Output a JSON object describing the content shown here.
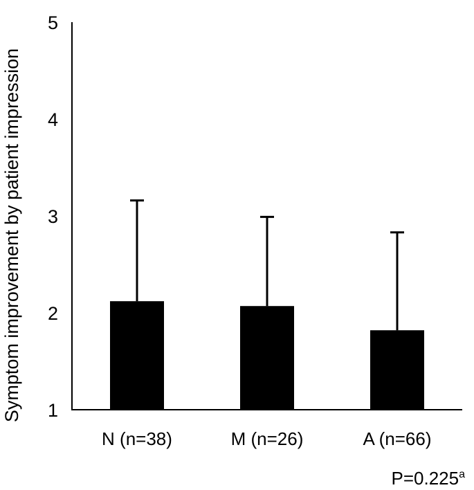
{
  "chart_data": {
    "type": "bar",
    "title": "",
    "xlabel": "",
    "ylabel": "Symptom improvement by patient impression",
    "categories": [
      "N (n=38)",
      "M (n=26)",
      "A (n=66)"
    ],
    "values": [
      2.12,
      2.07,
      1.82
    ],
    "error_upper": [
      3.16,
      2.99,
      2.83
    ],
    "ylim": [
      1,
      5
    ],
    "yticks": [
      "1",
      "2",
      "3",
      "4",
      "5"
    ],
    "grid": false,
    "legend": "none",
    "bar_color": "#000000",
    "annotation": {
      "text": "P=0.225",
      "superscript": "a"
    }
  }
}
